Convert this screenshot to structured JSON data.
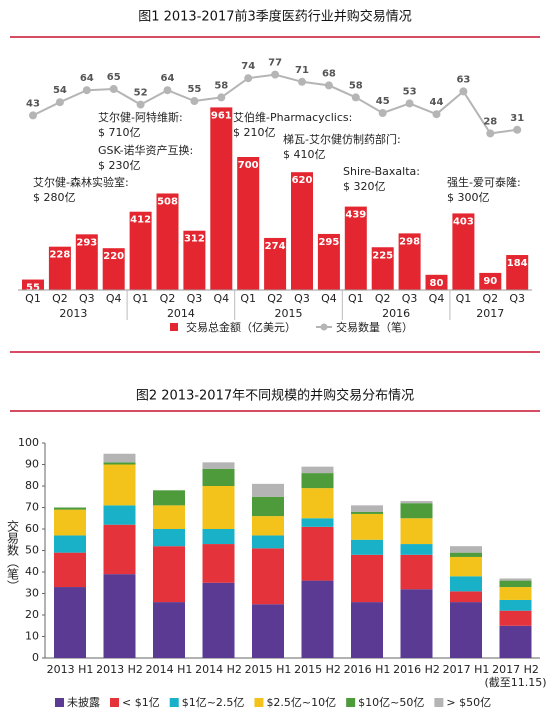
{
  "chart_data": [
    {
      "type": "combo",
      "title": "图1 2013-2017前3季度医药行业并购交易情况",
      "categories": [
        "Q1",
        "Q2",
        "Q3",
        "Q4",
        "Q1",
        "Q2",
        "Q3",
        "Q4",
        "Q1",
        "Q2",
        "Q3",
        "Q4",
        "Q1",
        "Q2",
        "Q3",
        "Q4",
        "Q1",
        "Q2",
        "Q3"
      ],
      "x_groups": [
        "2013",
        "2014",
        "2015",
        "2016",
        "2017"
      ],
      "series": [
        {
          "name": "交易总金额（亿美元）",
          "type": "bar",
          "color": "#e3262f",
          "values": [
            55,
            228,
            293,
            220,
            412,
            508,
            312,
            961,
            700,
            274,
            620,
            295,
            439,
            225,
            298,
            80,
            403,
            90,
            184
          ]
        },
        {
          "name": "交易数量（笔）",
          "type": "line",
          "color": "#b5b5b5",
          "values": [
            43,
            54,
            64,
            65,
            52,
            64,
            55,
            58,
            74,
            77,
            71,
            68,
            58,
            45,
            53,
            44,
            63,
            28,
            31
          ]
        }
      ],
      "annotations": [
        {
          "text": "艾尔健-森林实验室:",
          "value": "$ 280亿"
        },
        {
          "text": "GSK-诺华资产互换:",
          "value": "$ 230亿"
        },
        {
          "text": "艾尔健-阿特维斯:",
          "value": "$ 710亿"
        },
        {
          "text": "艾伯维-Pharmacyclics:",
          "value": "$ 210亿"
        },
        {
          "text": "梯瓦-艾尔健仿制药部门:",
          "value": "$ 410亿"
        },
        {
          "text": "Shire-Baxalta:",
          "value": "$ 320亿"
        },
        {
          "text": "强生-爱可泰隆:",
          "value": "$ 300亿"
        }
      ]
    },
    {
      "type": "stacked_bar",
      "title": "图2 2013-2017年不同规模的并购交易分布情况",
      "ylabel": "交易数（笔）",
      "categories": [
        "2013 H1",
        "2013 H2",
        "2014 H1",
        "2014 H2",
        "2015 H1",
        "2015 H2",
        "2016 H1",
        "2016 H2",
        "2017 H1",
        "2017 H2"
      ],
      "x_note": "(截至11.15)",
      "ylim": [
        0,
        100
      ],
      "yticks": [
        0,
        10,
        20,
        30,
        40,
        50,
        60,
        70,
        80,
        90,
        100
      ],
      "series": [
        {
          "name": "未披露",
          "color": "#5a3a93",
          "values": [
            33,
            39,
            26,
            35,
            25,
            36,
            26,
            32,
            26,
            15
          ]
        },
        {
          "name": "< $1亿",
          "color": "#e5333c",
          "values": [
            16,
            23,
            26,
            18,
            26,
            25,
            22,
            16,
            5,
            7
          ]
        },
        {
          "name": "$1亿~2.5亿",
          "color": "#19b1c8",
          "values": [
            8,
            9,
            8,
            7,
            6,
            4,
            7,
            5,
            7,
            5
          ]
        },
        {
          "name": "$2.5亿~10亿",
          "color": "#f3c31b",
          "values": [
            12,
            19,
            11,
            20,
            9,
            14,
            12,
            12,
            9,
            6
          ]
        },
        {
          "name": "$10亿~50亿",
          "color": "#4d9b3b",
          "values": [
            1,
            1,
            7,
            8,
            9,
            7,
            1,
            7,
            2,
            3
          ]
        },
        {
          "name": "> $50亿",
          "color": "#b4b4b4",
          "values": [
            0,
            4,
            0,
            3,
            6,
            3,
            3,
            1,
            3,
            1
          ]
        }
      ]
    }
  ]
}
